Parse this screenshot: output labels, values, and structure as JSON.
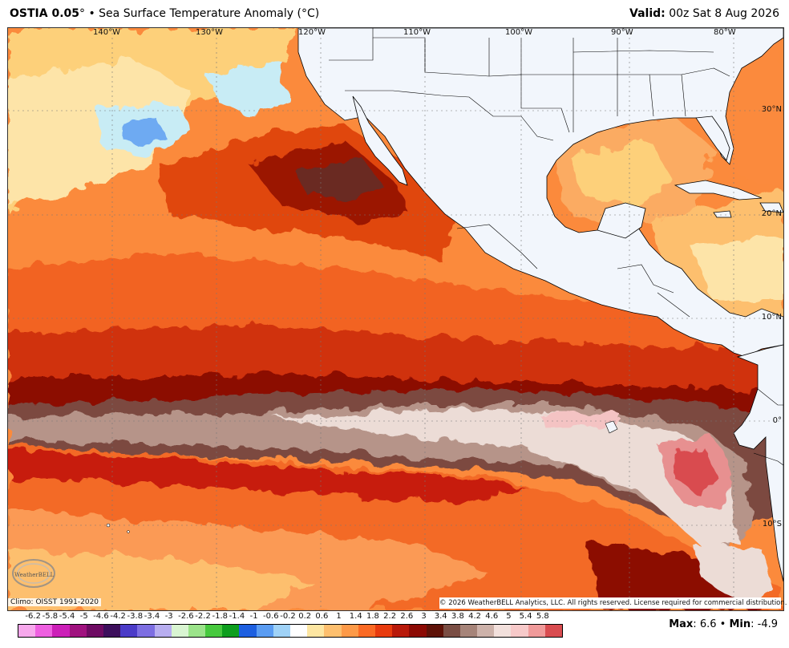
{
  "header": {
    "product": "OSTIA 0.05",
    "degree_sign": "°",
    "bullet": "•",
    "title_rest": "Sea Surface Temperature Anomaly (°C)",
    "valid_label": "Valid:",
    "valid_value": "00z Sat 8 Aug 2026"
  },
  "map": {
    "lon_labels": [
      "140°W",
      "130°W",
      "120°W",
      "110°W",
      "100°W",
      "90°W",
      "80°W"
    ],
    "lat_labels": [
      "30°N",
      "20°N",
      "10°N",
      "0°",
      "10°S"
    ]
  },
  "footer": {
    "climo": "Climo: OISST 1991-2020",
    "copyright": "© 2026 WeatherBELL Analytics, LLC. All rights reserved. License required for commercial distribution.",
    "logo_text": "WeatherBELL",
    "max_label": "Max",
    "max_value": "6.6",
    "min_label": "Min",
    "min_value": "-4.9"
  },
  "colorbar": {
    "labels": [
      "-6.2",
      "-5.8",
      "-5.4",
      "-5",
      "-4.6",
      "-4.2",
      "-3.8",
      "-3.4",
      "-3",
      "-2.6",
      "-2.2",
      "-1.8",
      "-1.4",
      "-1",
      "-0.6",
      "-0.2",
      "0.2",
      "0.6",
      "1",
      "1.4",
      "1.8",
      "2.2",
      "2.6",
      "3",
      "3.4",
      "3.8",
      "4.2",
      "4.6",
      "5",
      "5.4",
      "5.8"
    ],
    "colors": [
      "#f7a8ec",
      "#ee5fe0",
      "#cc1fb8",
      "#a0127f",
      "#6e0b63",
      "#3d0f5c",
      "#4b3bc8",
      "#7d6ee2",
      "#b8aef0",
      "#d9f5d2",
      "#9be38a",
      "#47c93e",
      "#0e9e1e",
      "#1d5fe0",
      "#5a9cf2",
      "#9fd2f7",
      "#ffffff",
      "#fde6a2",
      "#fdbf6e",
      "#fd9a48",
      "#fb6a24",
      "#e83b0e",
      "#b8190a",
      "#8c0a04",
      "#5e1208",
      "#7a4e44",
      "#a68479",
      "#cdb2aa",
      "#f2e0dc",
      "#f7c9c9",
      "#f09a9a",
      "#d94c50"
    ]
  }
}
